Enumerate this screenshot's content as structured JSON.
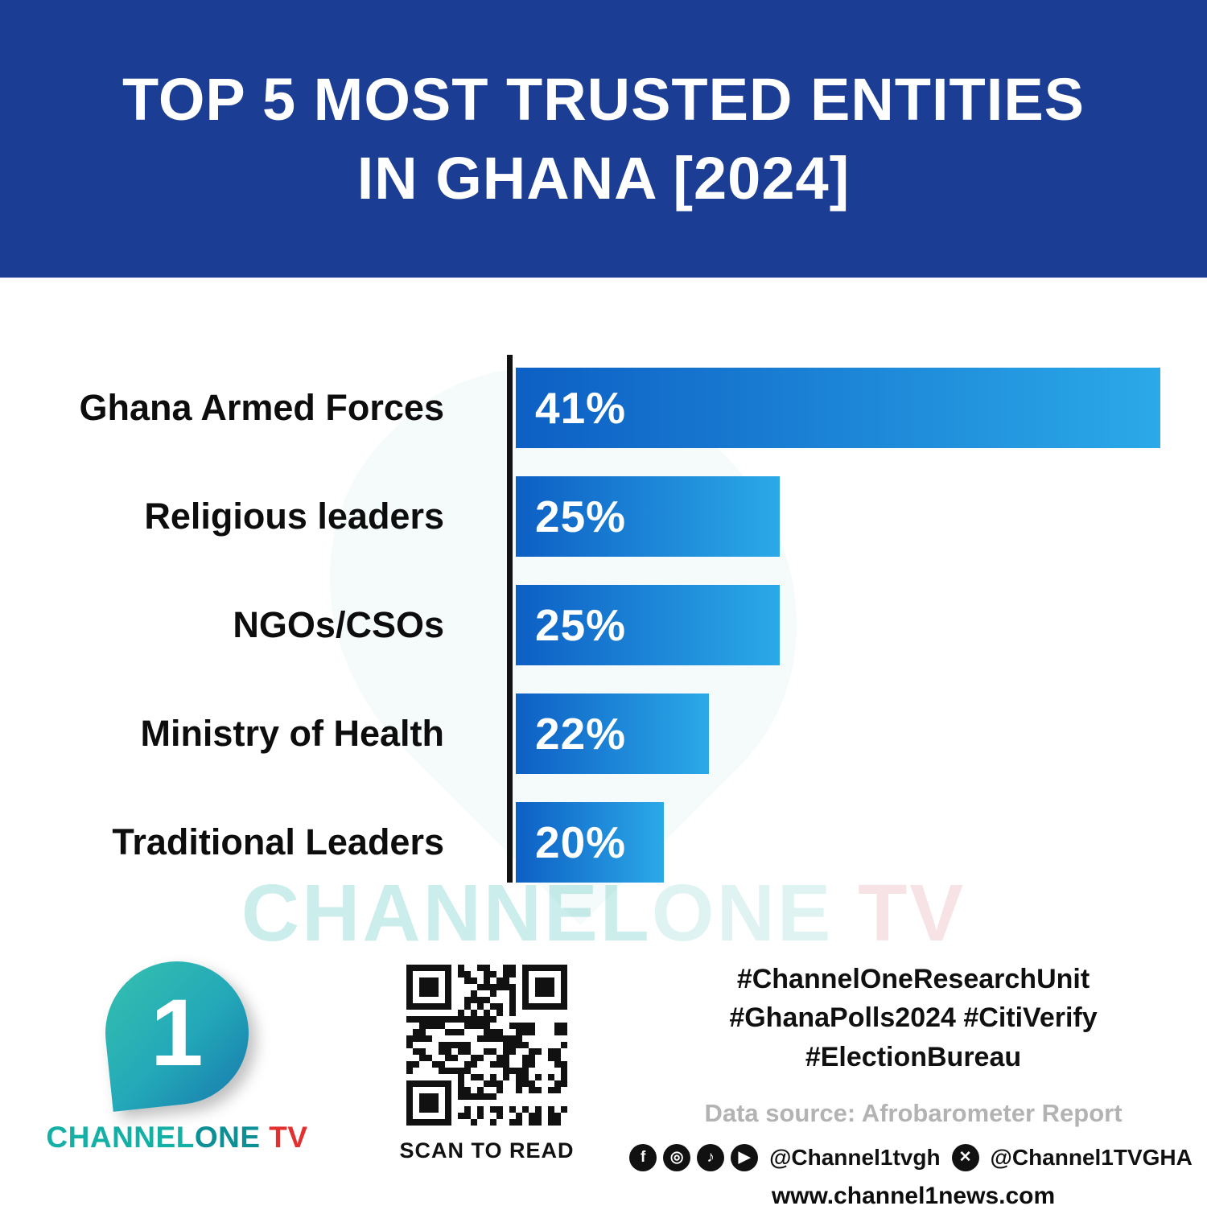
{
  "header": {
    "title_line1": "TOP 5 MOST TRUSTED ENTITIES",
    "title_line2": "IN GHANA [2024]"
  },
  "chart_data": {
    "type": "bar",
    "orientation": "horizontal",
    "title": "Top 5 Most Trusted Entities in Ghana [2024]",
    "categories": [
      "Ghana Armed Forces",
      "Religious leaders",
      "NGOs/CSOs",
      "Ministry of Health",
      "Traditional Leaders"
    ],
    "values": [
      41,
      25,
      25,
      22,
      20
    ],
    "value_labels": [
      "41%",
      "25%",
      "25%",
      "22%",
      "20%"
    ],
    "unit": "%",
    "bar_width_fractions": [
      1.0,
      0.41,
      0.41,
      0.3,
      0.23
    ],
    "bar_gradient_start": "#0d5fc4",
    "bar_gradient_end": "#2ba9e8",
    "axis_color": "#121212",
    "grid": false,
    "legend": false
  },
  "watermark": {
    "part1": "CHANNEL",
    "part2": "ONE",
    "part3": " TV"
  },
  "footer": {
    "logo": {
      "digit": "1",
      "brand_part1": "CHANNEL",
      "brand_part2": "ONE",
      "brand_part3": " TV",
      "brand_color_teal": "#14b0a6",
      "brand_color_teal_dark": "#0d8f96",
      "brand_color_red": "#e42f2f"
    },
    "qr_caption": "SCAN TO READ",
    "hashtags": [
      "#ChannelOneResearchUnit",
      "#GhanaPolls2024 #CitiVerify",
      "#ElectionBureau"
    ],
    "data_source": "Data source: Afrobarometer Report",
    "social": {
      "icons": [
        "facebook-icon",
        "instagram-icon",
        "tiktok-icon",
        "youtube-icon"
      ],
      "handle1": "@Channel1tvgh",
      "x_icon": "x-icon",
      "handle2": "@Channel1TVGHA"
    },
    "website": "www.channel1news.com"
  },
  "colors": {
    "header_bg": "#1b3d94",
    "page_bg": "#ffffff"
  }
}
